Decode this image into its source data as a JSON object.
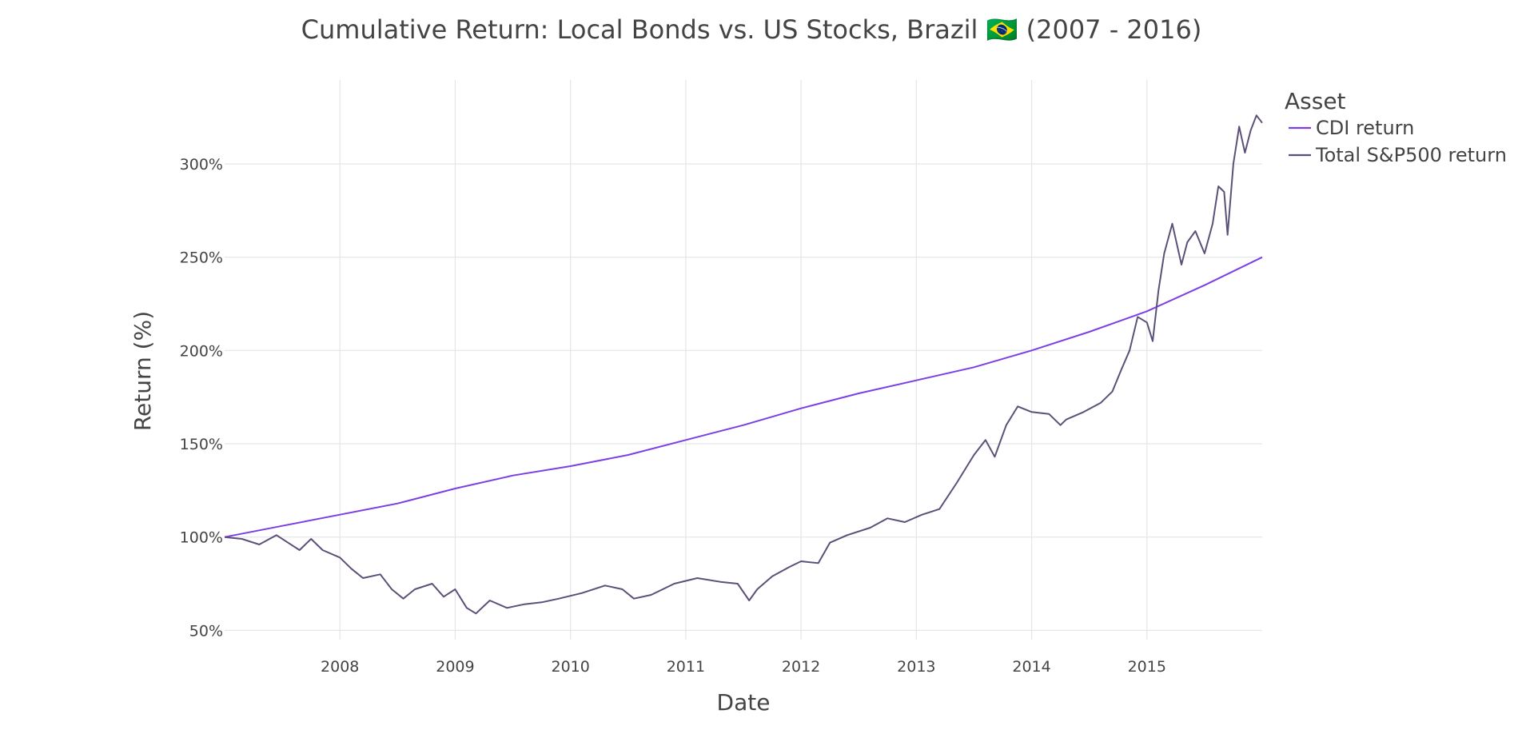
{
  "chart_data": {
    "type": "line",
    "title": "Cumulative Return: Local Bonds vs. US Stocks, Brazil 🇧🇷 (2007 - 2016)",
    "xlabel": "Date",
    "ylabel": "Return (%)",
    "xlim": [
      2007.0,
      2016.0
    ],
    "ylim": [
      45,
      345
    ],
    "x_ticks": [
      2008,
      2009,
      2010,
      2011,
      2012,
      2013,
      2014,
      2015
    ],
    "x_tick_labels": [
      "2008",
      "2009",
      "2010",
      "2011",
      "2012",
      "2013",
      "2014",
      "2015"
    ],
    "y_ticks": [
      50,
      100,
      150,
      200,
      250,
      300
    ],
    "y_tick_labels": [
      "50%",
      "100%",
      "150%",
      "200%",
      "250%",
      "300%"
    ],
    "legend_title": "Asset",
    "legend_position": "top-right",
    "grid": true,
    "series": [
      {
        "name": "CDI return",
        "color": "#7b3fe4",
        "x": [
          2007.0,
          2007.5,
          2008.0,
          2008.5,
          2009.0,
          2009.5,
          2010.0,
          2010.5,
          2011.0,
          2011.5,
          2012.0,
          2012.5,
          2013.0,
          2013.5,
          2014.0,
          2014.5,
          2015.0,
          2015.5,
          2016.0
        ],
        "values": [
          100,
          106,
          112,
          118,
          126,
          133,
          138,
          144,
          152,
          160,
          169,
          177,
          184,
          191,
          200,
          210,
          221,
          235,
          250
        ]
      },
      {
        "name": "Total S&P500 return",
        "color": "#5d5078",
        "x": [
          2007.0,
          2007.15,
          2007.3,
          2007.45,
          2007.55,
          2007.65,
          2007.75,
          2007.85,
          2008.0,
          2008.1,
          2008.2,
          2008.35,
          2008.45,
          2008.55,
          2008.65,
          2008.8,
          2008.9,
          2009.0,
          2009.1,
          2009.18,
          2009.3,
          2009.45,
          2009.6,
          2009.75,
          2009.9,
          2010.1,
          2010.3,
          2010.45,
          2010.55,
          2010.7,
          2010.9,
          2011.1,
          2011.3,
          2011.45,
          2011.55,
          2011.62,
          2011.75,
          2011.9,
          2012.0,
          2012.15,
          2012.25,
          2012.4,
          2012.6,
          2012.75,
          2012.9,
          2013.05,
          2013.2,
          2013.35,
          2013.5,
          2013.6,
          2013.68,
          2013.78,
          2013.88,
          2014.0,
          2014.15,
          2014.25,
          2014.3,
          2014.45,
          2014.6,
          2014.7,
          2014.78,
          2014.85,
          2014.92,
          2015.0,
          2015.05,
          2015.1,
          2015.15,
          2015.22,
          2015.3,
          2015.35,
          2015.42,
          2015.5,
          2015.57,
          2015.62,
          2015.67,
          2015.7,
          2015.75,
          2015.8,
          2015.85,
          2015.9,
          2015.95,
          2016.0
        ],
        "values": [
          100,
          99,
          96,
          101,
          97,
          93,
          99,
          93,
          89,
          83,
          78,
          80,
          72,
          67,
          72,
          75,
          68,
          72,
          62,
          59,
          66,
          62,
          64,
          65,
          67,
          70,
          74,
          72,
          67,
          69,
          75,
          78,
          76,
          75,
          66,
          72,
          79,
          84,
          87,
          86,
          97,
          101,
          105,
          110,
          108,
          112,
          115,
          129,
          144,
          152,
          143,
          160,
          170,
          167,
          166,
          160,
          163,
          167,
          172,
          178,
          190,
          200,
          218,
          215,
          205,
          232,
          252,
          268,
          246,
          258,
          264,
          252,
          268,
          288,
          285,
          262,
          300,
          320,
          306,
          318,
          326,
          322
        ]
      }
    ]
  }
}
